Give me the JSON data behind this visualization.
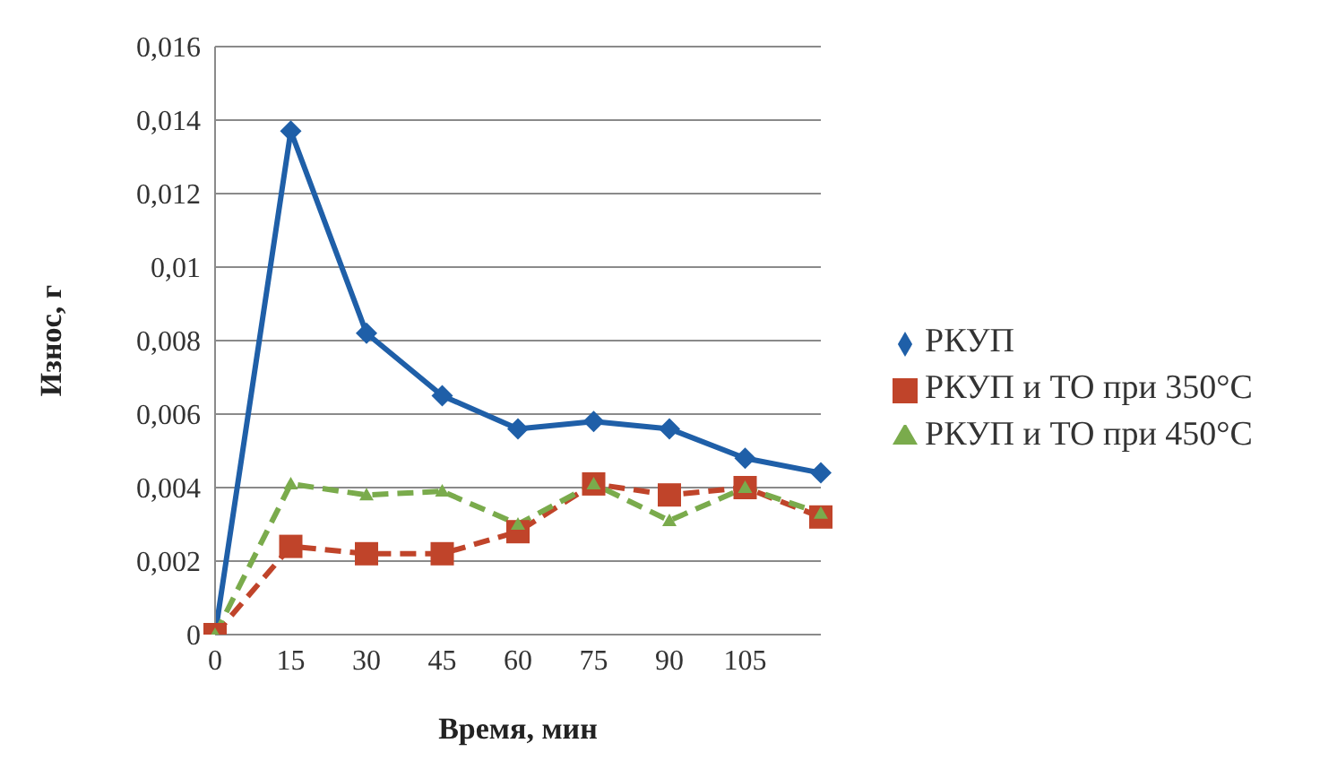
{
  "chart_data": {
    "type": "line",
    "xlabel": "Время, мин",
    "ylabel": "Износ, г",
    "categories": [
      "0",
      "15",
      "30",
      "45",
      "60",
      "75",
      "90",
      "105",
      null
    ],
    "series": [
      {
        "name": "РКУП",
        "color": "#1f5fa8",
        "marker": "diamond",
        "line_style": "solid",
        "values": [
          0,
          0.0137,
          0.0082,
          0.0065,
          0.0056,
          0.0058,
          0.0056,
          0.0048,
          0.0044
        ]
      },
      {
        "name": "РКУП и ТО при 350°С",
        "color": "#c0442a",
        "marker": "square",
        "line_style": "dashed",
        "values": [
          0,
          0.0024,
          0.0022,
          0.0022,
          0.0028,
          0.0041,
          0.0038,
          0.004,
          0.0032
        ]
      },
      {
        "name": "РКУП и ТО при 450°С",
        "color": "#7aab4c",
        "marker": "triangle",
        "line_style": "dashed",
        "values": [
          0,
          0.0041,
          0.0038,
          0.0039,
          0.003,
          0.0041,
          0.0031,
          0.004,
          0.0033
        ]
      }
    ],
    "ylim": [
      0,
      0.016
    ],
    "yticks": [
      0,
      {
        "value": 0.002,
        "label": "0,002"
      },
      {
        "value": 0.004,
        "label": "0,004"
      },
      {
        "value": 0.006,
        "label": "0,006"
      },
      {
        "value": 0.008,
        "label": "0,008"
      },
      {
        "value": 0.01,
        "label": "0,01"
      },
      {
        "value": 0.012,
        "label": "0,012"
      },
      {
        "value": 0.014,
        "label": "0,014"
      },
      {
        "value": 0.016,
        "label": "0,016"
      }
    ],
    "grid": "y",
    "legend": "right"
  }
}
